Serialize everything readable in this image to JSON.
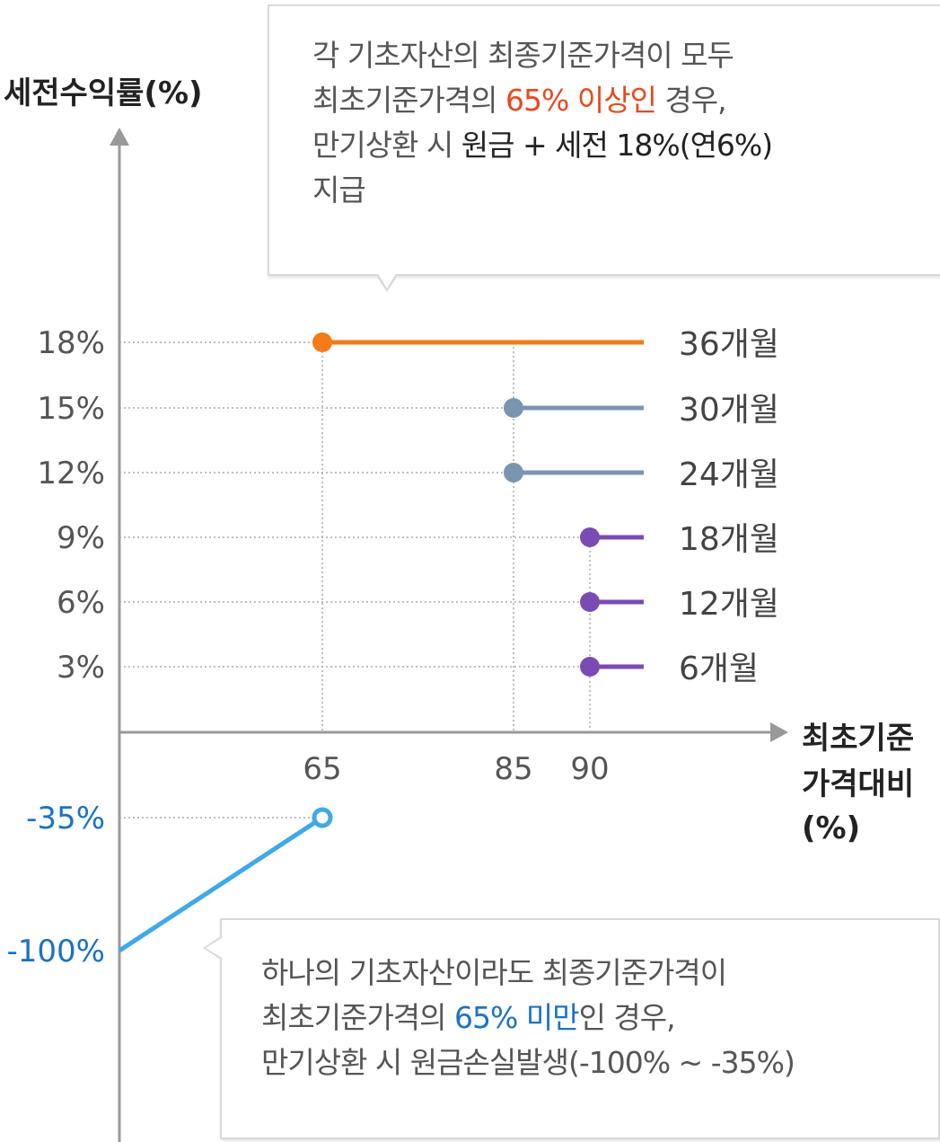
{
  "chart_data": {
    "type": "line",
    "ylabel": "세전수익률(%)",
    "xlabel_lines": [
      "최초기준",
      "가격대비",
      "(%)"
    ],
    "y_ticks": [
      {
        "value": 18,
        "label": "18%"
      },
      {
        "value": 15,
        "label": "15%"
      },
      {
        "value": 12,
        "label": "12%"
      },
      {
        "value": 9,
        "label": "9%"
      },
      {
        "value": 6,
        "label": "6%"
      },
      {
        "value": 3,
        "label": "3%"
      },
      {
        "value": -35,
        "label": "-35%"
      },
      {
        "value": -100,
        "label": "-100%"
      }
    ],
    "x_ticks": [
      {
        "value": 65,
        "label": "65"
      },
      {
        "value": 85,
        "label": "85"
      },
      {
        "value": 90,
        "label": "90"
      }
    ],
    "series": [
      {
        "name": "36개월",
        "x": [
          65,
          100
        ],
        "y": [
          18,
          18
        ],
        "color": "#f47b16"
      },
      {
        "name": "30개월",
        "x": [
          85,
          100
        ],
        "y": [
          15,
          15
        ],
        "color": "#7b94b0"
      },
      {
        "name": "24개월",
        "x": [
          85,
          100
        ],
        "y": [
          12,
          12
        ],
        "color": "#7b94b0"
      },
      {
        "name": "18개월",
        "x": [
          90,
          100
        ],
        "y": [
          9,
          9
        ],
        "color": "#7a4bb3"
      },
      {
        "name": "12개월",
        "x": [
          90,
          100
        ],
        "y": [
          6,
          6
        ],
        "color": "#7a4bb3"
      },
      {
        "name": "6개월",
        "x": [
          90,
          100
        ],
        "y": [
          3,
          3
        ],
        "color": "#7a4bb3"
      }
    ],
    "loss_segment": {
      "x": [
        0,
        65
      ],
      "y": [
        -100,
        -35
      ],
      "color": "#3fa9e8",
      "open_marker_at": [
        65,
        -35
      ]
    }
  },
  "callouts": {
    "top": {
      "line1": "각 기초자산의 최종기준가격이 모두",
      "line2_a": "최초기준가격의 ",
      "line2_b": "65% 이상인",
      "line2_c": " 경우,",
      "line3_a": "만기상환 시 ",
      "line3_b": "원금 + 세전 18%(연6%)",
      "line4": "지급"
    },
    "bottom": {
      "line1": "하나의 기초자산이라도 최종기준가격이",
      "line2_a": "최초기준가격의 ",
      "line2_b": "65% 미만",
      "line2_c": "인 경우,",
      "line3": "만기상환 시 원금손실발생(-100% ~ -35%)"
    }
  },
  "colors": {
    "axis": "#999999",
    "grid": "#aaaaaa",
    "negative_text": "#1a73c4",
    "highlight_red": "#e8491d"
  }
}
